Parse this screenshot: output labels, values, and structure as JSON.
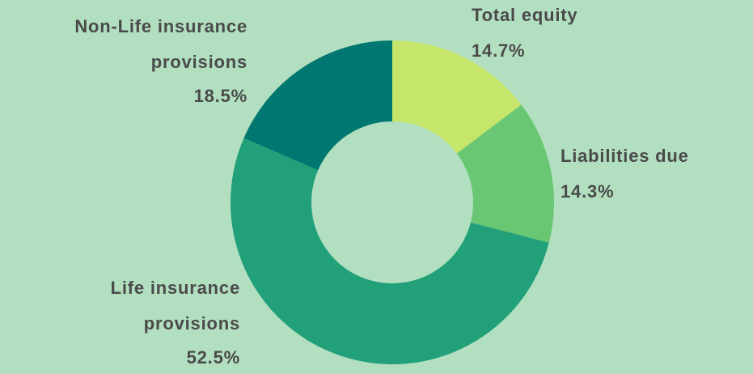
{
  "chart_data": {
    "type": "donut",
    "categories": [
      "Total equity",
      "Liabilities due",
      "Life insurance provisions",
      "Non-Life insurance provisions"
    ],
    "values": [
      14.7,
      14.3,
      52.5,
      18.5
    ],
    "value_labels": [
      "14.7%",
      "14.3%",
      "52.5%",
      "18.5%"
    ],
    "colors": [
      "#c5e56b",
      "#69c774",
      "#22a07a",
      "#007770"
    ]
  }
}
